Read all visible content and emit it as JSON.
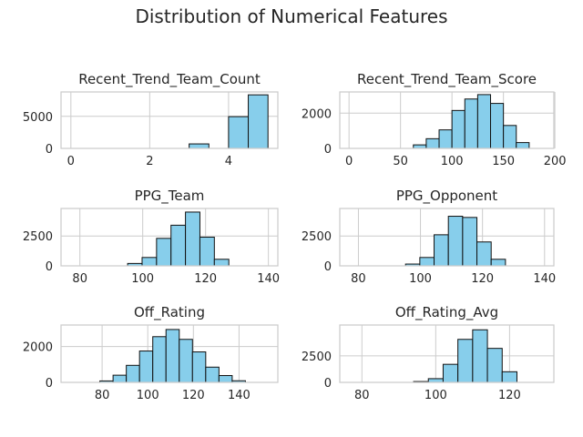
{
  "figure_title": "Distribution of Numerical Features",
  "bar_color": "#87CEEB",
  "edge_color": "#111111",
  "grid_color": "#cccccc",
  "chart_data": [
    {
      "type": "bar",
      "title": "Recent_Trend_Team_Count",
      "xlim": [
        -0.25,
        5.25
      ],
      "ylim": [
        0,
        8800
      ],
      "xticks": [
        0,
        2,
        4
      ],
      "yticks": [
        0,
        5000
      ],
      "bin_edges": [
        0,
        0.5,
        1,
        1.5,
        2,
        2.5,
        3,
        3.5,
        4,
        4.5,
        5
      ],
      "counts": [
        0,
        0,
        0,
        0,
        0,
        0,
        700,
        0,
        4950,
        8350
      ],
      "grid": true
    },
    {
      "type": "bar",
      "title": "Recent_Trend_Team_Score",
      "xlim": [
        -9,
        199
      ],
      "ylim": [
        0,
        3200
      ],
      "xticks": [
        0,
        50,
        100,
        150,
        200
      ],
      "yticks": [
        0,
        2000
      ],
      "bin_edges": [
        0,
        12.5,
        25,
        37.5,
        50,
        62.5,
        75,
        87.5,
        100,
        112.5,
        125,
        137.5,
        150,
        162.5,
        175
      ],
      "counts": [
        0,
        0,
        0,
        0,
        0,
        200,
        550,
        1050,
        2150,
        2800,
        3050,
        2550,
        1300,
        330
      ],
      "grid": true
    },
    {
      "type": "bar",
      "title": "PPG_Team",
      "xlim": [
        74,
        143
      ],
      "ylim": [
        0,
        4800
      ],
      "xticks": [
        80,
        100,
        120,
        140
      ],
      "yticks": [
        0,
        2500
      ],
      "bin_edges": [
        86,
        90.6,
        95.2,
        99.8,
        104.4,
        109,
        113.6,
        118.2,
        122.8,
        127.4
      ],
      "counts": [
        0,
        0,
        200,
        700,
        2300,
        3400,
        4500,
        2400,
        550
      ],
      "grid": true
    },
    {
      "type": "bar",
      "title": "PPG_Opponent",
      "xlim": [
        74,
        143
      ],
      "ylim": [
        0,
        4800
      ],
      "xticks": [
        80,
        100,
        120,
        140
      ],
      "yticks": [
        0,
        2500
      ],
      "bin_edges": [
        86,
        90.6,
        95.2,
        99.8,
        104.4,
        109,
        113.6,
        118.2,
        122.8,
        127.4,
        132
      ],
      "counts": [
        0,
        0,
        150,
        700,
        2600,
        4150,
        4050,
        2000,
        550,
        0
      ],
      "grid": true
    },
    {
      "type": "bar",
      "title": "Off_Rating",
      "xlim": [
        62,
        157
      ],
      "ylim": [
        0,
        3200
      ],
      "xticks": [
        80,
        100,
        120,
        140
      ],
      "yticks": [
        0,
        2000
      ],
      "bin_edges": [
        79,
        84.8,
        90.6,
        96.4,
        102.2,
        108,
        113.8,
        119.6,
        125.4,
        131.2,
        137,
        142.8,
        148.6
      ],
      "counts": [
        80,
        400,
        950,
        1750,
        2550,
        2950,
        2400,
        1700,
        850,
        380,
        90,
        0
      ],
      "grid": true
    },
    {
      "type": "bar",
      "title": "Off_Rating_Avg",
      "xlim": [
        74,
        132
      ],
      "ylim": [
        0,
        5400
      ],
      "xticks": [
        80,
        100,
        120
      ],
      "yticks": [
        0,
        2500
      ],
      "bin_edges": [
        94,
        98,
        102,
        106,
        110,
        114,
        118,
        122
      ],
      "counts": [
        80,
        350,
        1700,
        4050,
        4950,
        3200,
        1000
      ],
      "grid": true
    }
  ]
}
